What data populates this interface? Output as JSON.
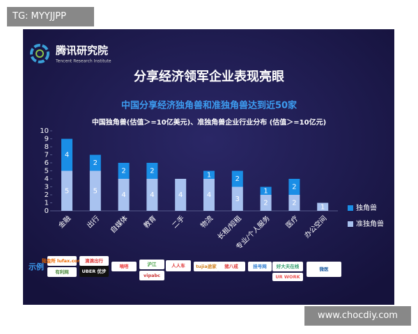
{
  "tag": "TG: MYYJJPP",
  "watermark": "www.chocdiy.com",
  "logo": {
    "name": "腾讯研究院",
    "subtitle": "Tencent Research Institute"
  },
  "examples_label": "示例",
  "examples": [
    "陆金所 lufax.com",
    "有利网",
    "滴滴出行",
    "UBER 优步",
    "嘀嗒",
    "沪江",
    "vipabc",
    "人人车",
    "tujia途家",
    "猪八戒",
    "挂号网",
    "好大夫在线",
    "UR WORK",
    "微医"
  ],
  "chart_data": {
    "type": "bar",
    "stacked": true,
    "title": "分享经济领军企业表现亮眼",
    "subtitle": "中国分享经济独角兽和准独角兽达到近50家",
    "chart_title": "中国独角兽(估值＞=10亿美元)、准独角兽企业行业分布 (估值＞=10亿元)",
    "categories": [
      "金融",
      "出行",
      "自媒体",
      "教育",
      "二手",
      "物流",
      "长租/短租",
      "专业/个人服务",
      "医疗",
      "办公空间"
    ],
    "series": [
      {
        "name": "独角兽",
        "color": "#1a8ee6",
        "values": [
          4,
          2,
          2,
          2,
          null,
          1,
          2,
          1,
          2,
          null
        ]
      },
      {
        "name": "准独角兽",
        "color": "#a8c2ef",
        "values": [
          5,
          5,
          4,
          4,
          4,
          4,
          3,
          2,
          2,
          1
        ]
      }
    ],
    "ylim": [
      0,
      10
    ],
    "yticks": [
      0,
      1,
      2,
      3,
      4,
      5,
      6,
      7,
      8,
      9,
      10
    ],
    "legend": "right"
  }
}
